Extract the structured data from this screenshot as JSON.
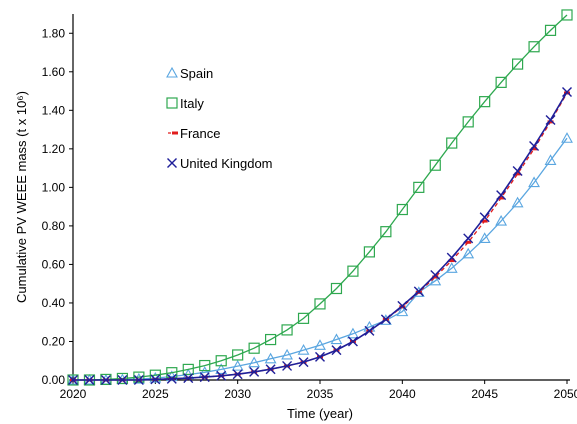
{
  "chart_data": {
    "type": "line",
    "xlabel": "Time (year)",
    "ylabel": "Cumulative PV WEEE mass (t x 10⁶)",
    "xlim": [
      2020,
      2050
    ],
    "ylim": [
      0,
      1.9
    ],
    "xticks": [
      "2020",
      "2025",
      "2030",
      "2035",
      "2040",
      "2045",
      "2050"
    ],
    "yticks": [
      "0.00",
      "0.20",
      "0.40",
      "0.60",
      "0.80",
      "1.00",
      "1.20",
      "1.40",
      "1.60",
      "1.80"
    ],
    "grid": false,
    "legend_position": "upper-left inside",
    "x": [
      2020,
      2021,
      2022,
      2023,
      2024,
      2025,
      2026,
      2027,
      2028,
      2029,
      2030,
      2031,
      2032,
      2033,
      2034,
      2035,
      2036,
      2037,
      2038,
      2039,
      2040,
      2041,
      2042,
      2043,
      2044,
      2045,
      2046,
      2047,
      2048,
      2049,
      2050
    ],
    "series": [
      {
        "name": "Spain",
        "color": "#5aa6e0",
        "marker": "triangle",
        "values": [
          0.0,
          0.0,
          0.0,
          0.002,
          0.005,
          0.01,
          0.018,
          0.028,
          0.04,
          0.055,
          0.072,
          0.09,
          0.11,
          0.13,
          0.155,
          0.18,
          0.21,
          0.24,
          0.275,
          0.31,
          0.355,
          0.455,
          0.515,
          0.58,
          0.655,
          0.735,
          0.825,
          0.92,
          1.025,
          1.14,
          1.255
        ]
      },
      {
        "name": "Italy",
        "color": "#2ea84f",
        "marker": "square",
        "values": [
          0.0,
          0.0,
          0.003,
          0.008,
          0.015,
          0.025,
          0.038,
          0.055,
          0.075,
          0.1,
          0.13,
          0.165,
          0.21,
          0.26,
          0.32,
          0.395,
          0.475,
          0.565,
          0.665,
          0.77,
          0.885,
          1.0,
          1.115,
          1.23,
          1.34,
          1.445,
          1.545,
          1.64,
          1.73,
          1.815,
          1.895
        ]
      },
      {
        "name": "France",
        "color": "#e11c1c",
        "marker": "dash",
        "values": [
          0.0,
          0.0,
          0.0,
          0.0,
          0.0,
          0.003,
          0.006,
          0.01,
          0.015,
          0.022,
          0.03,
          0.042,
          0.056,
          0.073,
          0.093,
          0.12,
          0.155,
          0.2,
          0.255,
          0.315,
          0.38,
          0.455,
          0.535,
          0.62,
          0.715,
          0.825,
          0.945,
          1.07,
          1.2,
          1.34,
          1.49
        ]
      },
      {
        "name": "United Kingdom",
        "color": "#1f1f99",
        "marker": "x",
        "values": [
          0.0,
          0.0,
          0.0,
          0.0,
          0.0,
          0.003,
          0.006,
          0.01,
          0.015,
          0.022,
          0.03,
          0.042,
          0.056,
          0.073,
          0.093,
          0.12,
          0.155,
          0.2,
          0.255,
          0.315,
          0.385,
          0.46,
          0.545,
          0.635,
          0.735,
          0.845,
          0.96,
          1.085,
          1.215,
          1.35,
          1.495
        ]
      }
    ]
  }
}
